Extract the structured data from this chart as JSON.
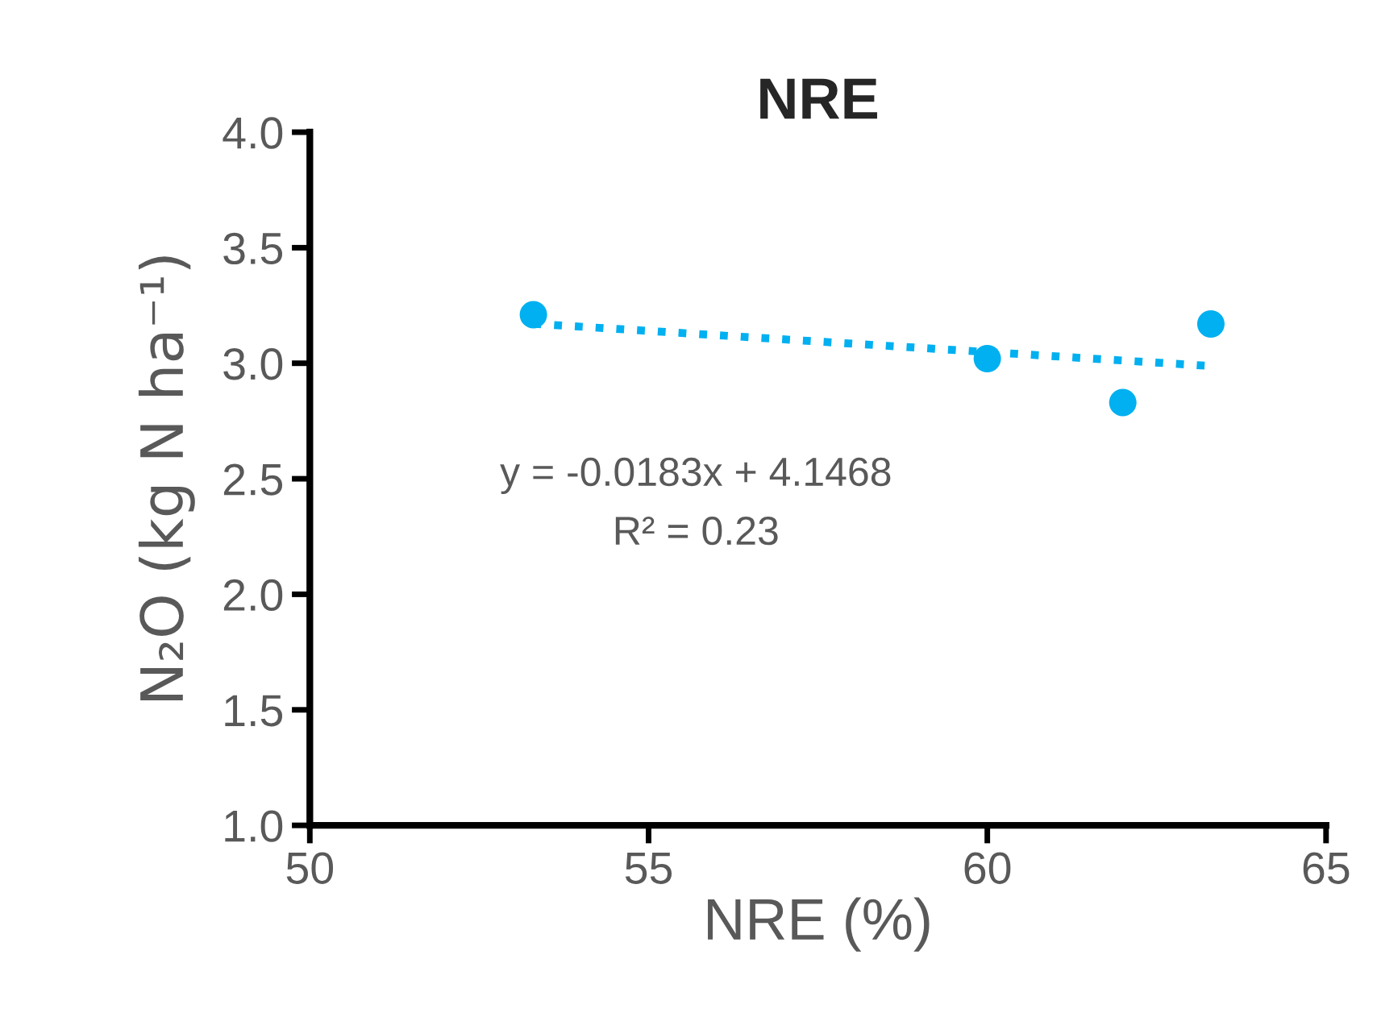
{
  "chart_data": {
    "type": "scatter",
    "title": "NRE",
    "xlabel": "NRE (%)",
    "ylabel": "N₂O (kg N ha⁻¹)",
    "x": [
      53.3,
      60.0,
      62.0,
      63.3
    ],
    "series": [
      {
        "color": "#00b0f0",
        "values": [
          3.21,
          3.02,
          2.83,
          3.17
        ],
        "marker": "circle"
      },
      {
        "type": "line",
        "color": "#00b0f0",
        "x": [
          53.3,
          63.3
        ],
        "values": [
          3.171,
          2.988
        ],
        "line_style": "dotted",
        "marker": "none"
      }
    ],
    "annotations": [
      "y = -0.0183x + 4.1468",
      "R² = 0.23"
    ],
    "xlim": [
      50,
      65
    ],
    "xticks": [
      50,
      55,
      60,
      65
    ],
    "ylim": [
      1.0,
      4.0
    ],
    "yticks": [
      {
        "value": 1.0,
        "label": "1.0"
      },
      {
        "value": 1.5,
        "label": "1.5"
      },
      {
        "value": 2.0,
        "label": "2.0"
      },
      {
        "value": 2.5,
        "label": "2.5"
      },
      {
        "value": 3.0,
        "label": "3.0"
      },
      {
        "value": 3.5,
        "label": "3.5"
      },
      {
        "value": 4.0,
        "label": "4.0"
      }
    ],
    "grid": false,
    "legend": false
  }
}
